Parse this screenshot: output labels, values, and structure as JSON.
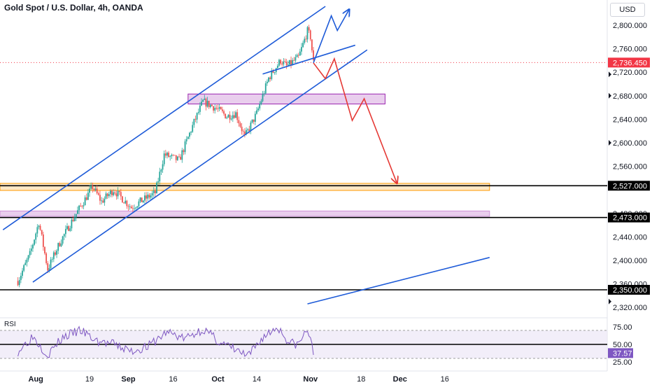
{
  "header": {
    "title": "Gold Spot / U.S. Dollar, 4h, OANDA",
    "currency": "USD"
  },
  "colors": {
    "up": "#26a69a",
    "down": "#ef5350",
    "channel": "#1e5bd8",
    "bearish_path": "#e53935",
    "supply_zone": "#e1bee7",
    "support_zone": "#ffe0b2",
    "rsi": "#7e57c2",
    "last_price": "#f23645",
    "rsi_value": "#7e57c2"
  },
  "chart_data": [
    {
      "type": "line",
      "title": "Gold Spot / U.S. Dollar, 4h, OANDA",
      "x_tick_labels": [
        "Aug",
        "19",
        "Sep",
        "16",
        "Oct",
        "14",
        "Nov",
        "18",
        "Dec",
        "16"
      ],
      "y_tick_labels": [
        "2,800.000",
        "2,760.000",
        "2,720.000",
        "2,680.000",
        "2,640.000",
        "2,600.000",
        "2,560.000",
        "2,480.000",
        "2,440.000",
        "2,400.000",
        "2,360.000",
        "2,320.000"
      ],
      "ylim": [
        2300,
        2830
      ],
      "price_path": [
        {
          "x": "2024-07-26",
          "y": 2365
        },
        {
          "x": "2024-07-30",
          "y": 2410
        },
        {
          "x": "2024-08-02",
          "y": 2465
        },
        {
          "x": "2024-08-05",
          "y": 2385
        },
        {
          "x": "2024-08-09",
          "y": 2430
        },
        {
          "x": "2024-08-14",
          "y": 2475
        },
        {
          "x": "2024-08-20",
          "y": 2525
        },
        {
          "x": "2024-08-23",
          "y": 2500
        },
        {
          "x": "2024-08-27",
          "y": 2520
        },
        {
          "x": "2024-09-02",
          "y": 2490
        },
        {
          "x": "2024-09-05",
          "y": 2500
        },
        {
          "x": "2024-09-10",
          "y": 2515
        },
        {
          "x": "2024-09-13",
          "y": 2580
        },
        {
          "x": "2024-09-18",
          "y": 2570
        },
        {
          "x": "2024-09-23",
          "y": 2635
        },
        {
          "x": "2024-09-26",
          "y": 2670
        },
        {
          "x": "2024-09-30",
          "y": 2660
        },
        {
          "x": "2024-10-04",
          "y": 2645
        },
        {
          "x": "2024-10-07",
          "y": 2650
        },
        {
          "x": "2024-10-10",
          "y": 2610
        },
        {
          "x": "2024-10-14",
          "y": 2650
        },
        {
          "x": "2024-10-18",
          "y": 2710
        },
        {
          "x": "2024-10-22",
          "y": 2740
        },
        {
          "x": "2024-10-24",
          "y": 2730
        },
        {
          "x": "2024-10-28",
          "y": 2745
        },
        {
          "x": "2024-10-31",
          "y": 2790
        },
        {
          "x": "2024-11-01",
          "y": 2780
        },
        {
          "x": "2024-11-02",
          "y": 2736.45
        }
      ],
      "last_price": "2,736.450",
      "horizontal_levels": [
        {
          "value": 2527,
          "label": "2,527.000"
        },
        {
          "value": 2473,
          "label": "2,473.000"
        },
        {
          "value": 2350,
          "label": "2,350.000"
        }
      ],
      "zones": [
        {
          "kind": "supply",
          "from": 2666,
          "to": 2683,
          "x_start": "2024-09-21",
          "x_end": "2024-11-26"
        },
        {
          "kind": "support",
          "from": 2519,
          "to": 2531,
          "x_start": "2024-07-20",
          "x_end": "2024-12-31"
        },
        {
          "kind": "support-purple",
          "from": 2475,
          "to": 2484,
          "x_start": "2024-07-20",
          "x_end": "2024-12-31"
        }
      ],
      "trendlines": [
        {
          "from": {
            "x": "2024-07-21",
            "y": 2452
          },
          "to": {
            "x": "2024-11-06",
            "y": 2832
          }
        },
        {
          "from": {
            "x": "2024-07-31",
            "y": 2363
          },
          "to": {
            "x": "2024-11-20",
            "y": 2758
          }
        },
        {
          "from": {
            "x": "2024-10-16",
            "y": 2717
          },
          "to": {
            "x": "2024-11-16",
            "y": 2766
          }
        },
        {
          "from": {
            "x": "2024-10-31",
            "y": 2326
          },
          "to": {
            "x": "2024-12-31",
            "y": 2405
          }
        }
      ],
      "scenarios": [
        {
          "kind": "bullish",
          "points": [
            {
              "x": "2024-11-02",
              "y": 2736
            },
            {
              "x": "2024-11-08",
              "y": 2816
            },
            {
              "x": "2024-11-10",
              "y": 2791
            },
            {
              "x": "2024-11-14",
              "y": 2827
            }
          ]
        },
        {
          "kind": "bearish",
          "points": [
            {
              "x": "2024-11-02",
              "y": 2736
            },
            {
              "x": "2024-11-06",
              "y": 2709
            },
            {
              "x": "2024-11-09",
              "y": 2743
            },
            {
              "x": "2024-11-15",
              "y": 2638
            },
            {
              "x": "2024-11-19",
              "y": 2675
            },
            {
              "x": "2024-11-30",
              "y": 2531
            }
          ]
        }
      ]
    },
    {
      "type": "line",
      "title": "RSI",
      "y_tick_labels": [
        "75.00",
        "50.00",
        "25.00"
      ],
      "ylim": [
        20,
        85
      ],
      "bands": [
        70,
        30
      ],
      "midline": 50,
      "current_value": "37.57",
      "values": [
        {
          "x": "2024-07-26",
          "y": 40
        },
        {
          "x": "2024-07-31",
          "y": 62
        },
        {
          "x": "2024-08-05",
          "y": 35
        },
        {
          "x": "2024-08-10",
          "y": 60
        },
        {
          "x": "2024-08-16",
          "y": 70
        },
        {
          "x": "2024-08-21",
          "y": 55
        },
        {
          "x": "2024-08-27",
          "y": 50
        },
        {
          "x": "2024-09-02",
          "y": 40
        },
        {
          "x": "2024-09-08",
          "y": 48
        },
        {
          "x": "2024-09-14",
          "y": 68
        },
        {
          "x": "2024-09-20",
          "y": 58
        },
        {
          "x": "2024-09-26",
          "y": 72
        },
        {
          "x": "2024-10-02",
          "y": 52
        },
        {
          "x": "2024-10-08",
          "y": 40
        },
        {
          "x": "2024-10-11",
          "y": 32
        },
        {
          "x": "2024-10-16",
          "y": 60
        },
        {
          "x": "2024-10-21",
          "y": 75
        },
        {
          "x": "2024-10-25",
          "y": 52
        },
        {
          "x": "2024-10-28",
          "y": 50
        },
        {
          "x": "2024-10-31",
          "y": 72
        },
        {
          "x": "2024-11-02",
          "y": 37.57
        }
      ]
    }
  ]
}
